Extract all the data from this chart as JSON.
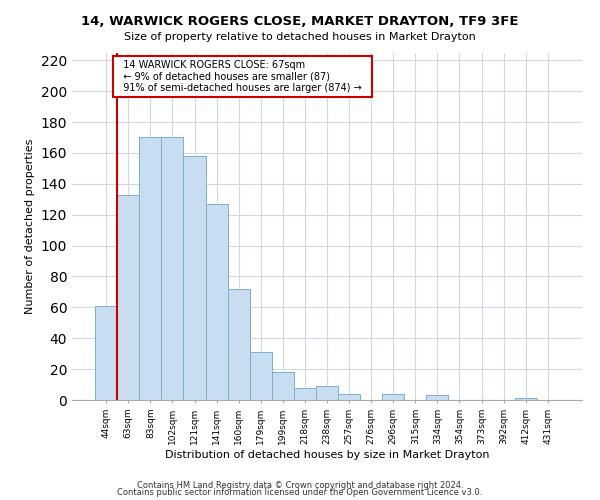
{
  "title": "14, WARWICK ROGERS CLOSE, MARKET DRAYTON, TF9 3FE",
  "subtitle": "Size of property relative to detached houses in Market Drayton",
  "xlabel": "Distribution of detached houses by size in Market Drayton",
  "ylabel": "Number of detached properties",
  "bin_labels": [
    "44sqm",
    "63sqm",
    "83sqm",
    "102sqm",
    "121sqm",
    "141sqm",
    "160sqm",
    "179sqm",
    "199sqm",
    "218sqm",
    "238sqm",
    "257sqm",
    "276sqm",
    "296sqm",
    "315sqm",
    "334sqm",
    "354sqm",
    "373sqm",
    "392sqm",
    "412sqm",
    "431sqm"
  ],
  "bar_values": [
    61,
    133,
    170,
    170,
    158,
    127,
    72,
    31,
    18,
    8,
    9,
    4,
    0,
    4,
    0,
    3,
    0,
    0,
    0,
    1,
    0
  ],
  "bar_color": "#c8ddf0",
  "bar_edge_color": "#7bafd4",
  "highlight_color": "#cc0000",
  "ylim": [
    0,
    225
  ],
  "yticks": [
    0,
    20,
    40,
    60,
    80,
    100,
    120,
    140,
    160,
    180,
    200,
    220
  ],
  "annotation_title": "14 WARWICK ROGERS CLOSE: 67sqm",
  "annotation_line1": "← 9% of detached houses are smaller (87)",
  "annotation_line2": "91% of semi-detached houses are larger (874) →",
  "annotation_box_color": "#ffffff",
  "annotation_box_edge": "#cc0000",
  "footer1": "Contains HM Land Registry data © Crown copyright and database right 2024.",
  "footer2": "Contains public sector information licensed under the Open Government Licence v3.0.",
  "background_color": "#ffffff",
  "grid_color": "#d0d8e8"
}
